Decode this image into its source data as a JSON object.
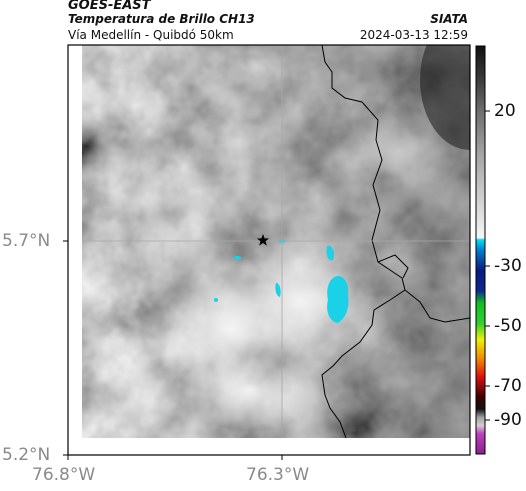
{
  "header": {
    "satellite": "GOES-EAST",
    "product": "Temperatura de Brillo CH13",
    "organization": "SIATA",
    "route": "Vía Medellín - Quibdó 50km",
    "timestamp": "2024-03-13 12:59"
  },
  "map": {
    "lat_ticks": [
      "5.7°N",
      "5.2°N"
    ],
    "lon_ticks": [
      "76.8°W",
      "76.3°W"
    ],
    "marker": "star-marker"
  },
  "colorbar": {
    "tick_labels": [
      "20",
      "-30",
      "-50",
      "-70",
      "-90"
    ],
    "colors": {
      "cyan": "#00d8f0",
      "navy": "#0a1a80",
      "green": "#10c020",
      "yellow": "#f0f000",
      "red": "#e01010",
      "black": "#111111",
      "magenta": "#c040c0"
    }
  },
  "colors": {
    "cloud_cold": "#1ad1e8",
    "boundary": "#000000",
    "gridline": "#b0b0b0"
  }
}
